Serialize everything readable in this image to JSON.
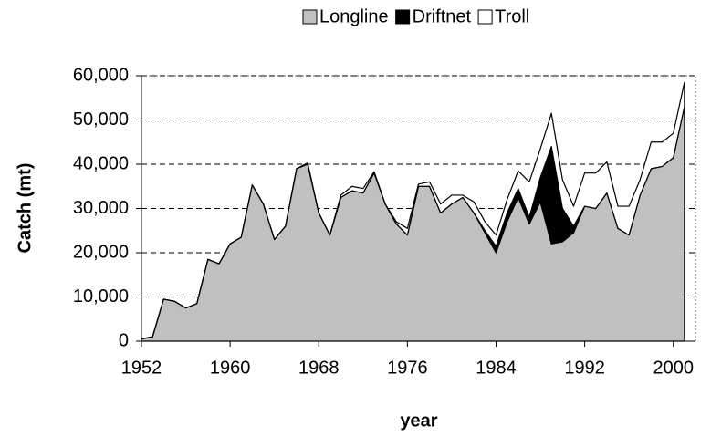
{
  "chart_data": {
    "type": "stacked_area",
    "x_label": "year",
    "y_label": "Catch (mt)",
    "x": [
      1952,
      1953,
      1954,
      1955,
      1956,
      1957,
      1958,
      1959,
      1960,
      1961,
      1962,
      1963,
      1964,
      1965,
      1966,
      1967,
      1968,
      1969,
      1970,
      1971,
      1972,
      1973,
      1974,
      1975,
      1976,
      1977,
      1978,
      1979,
      1980,
      1981,
      1982,
      1983,
      1984,
      1985,
      1986,
      1987,
      1988,
      1989,
      1990,
      1991,
      1992,
      1993,
      1994,
      1995,
      1996,
      1997,
      1998,
      1999,
      2000,
      2001
    ],
    "series": [
      {
        "name": "Longline",
        "color": "#c0c0c0",
        "values": [
          500,
          1000,
          9500,
          9000,
          7500,
          8500,
          18500,
          17500,
          22000,
          23500,
          35300,
          31000,
          23000,
          26000,
          39000,
          40000,
          29000,
          24000,
          32500,
          34000,
          33500,
          38000,
          31000,
          26500,
          24000,
          35000,
          35000,
          29000,
          31000,
          32500,
          29000,
          24500,
          20000,
          27000,
          32500,
          26500,
          31500,
          22000,
          22500,
          24500,
          30500,
          30000,
          33500,
          25500,
          24000,
          33000,
          39000,
          39500,
          41500,
          53000
        ]
      },
      {
        "name": "Driftnet",
        "color": "#000000",
        "values": [
          0,
          0,
          0,
          0,
          0,
          0,
          0,
          0,
          0,
          0,
          0,
          0,
          0,
          0,
          0,
          0,
          0,
          0,
          0,
          0,
          0,
          0,
          0,
          0,
          0,
          0,
          0,
          0,
          0,
          0,
          0,
          500,
          1500,
          2000,
          2000,
          1500,
          5500,
          22000,
          7500,
          1500,
          0,
          0,
          0,
          0,
          0,
          0,
          0,
          0,
          0,
          0
        ]
      },
      {
        "name": "Troll",
        "color": "#ffffff",
        "values": [
          0,
          0,
          0,
          0,
          0,
          0,
          0,
          0,
          0,
          0,
          0,
          0,
          0,
          0,
          0,
          300,
          0,
          0,
          500,
          1000,
          1000,
          300,
          0,
          500,
          1500,
          500,
          1000,
          2000,
          2000,
          500,
          2500,
          2000,
          2500,
          3000,
          4000,
          8000,
          6500,
          7500,
          6500,
          4500,
          7500,
          8000,
          7000,
          5000,
          6500,
          3500,
          6000,
          5500,
          5500,
          5500
        ]
      }
    ],
    "xlim": [
      1952,
      2002
    ],
    "xticks": [
      1952,
      1960,
      1968,
      1976,
      1984,
      1992,
      2000
    ],
    "ylim": [
      0,
      60000
    ],
    "yticks": [
      0,
      {
        "value": 10000,
        "label": "10,000"
      },
      {
        "value": 20000,
        "label": "20,000"
      },
      {
        "value": 30000,
        "label": "30,000"
      },
      {
        "value": 40000,
        "label": "40,000"
      },
      {
        "value": 50000,
        "label": "50,000"
      },
      {
        "value": 60000,
        "label": "60,000"
      }
    ],
    "grid": true,
    "legend": "top"
  }
}
